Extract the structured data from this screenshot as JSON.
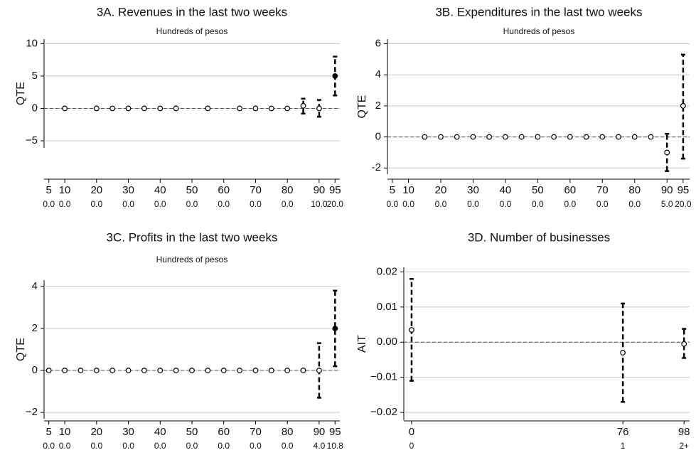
{
  "chart_data": [
    {
      "type": "errorbar",
      "title": "3A. Revenues in the last two weeks",
      "subtitle": "Hundreds of pesos",
      "y_label": "QTE",
      "x": [
        5,
        10,
        15,
        20,
        25,
        30,
        35,
        40,
        45,
        50,
        55,
        60,
        65,
        70,
        75,
        80,
        85,
        90,
        95
      ],
      "values": [
        null,
        0,
        null,
        0,
        0,
        0,
        0,
        0,
        0,
        null,
        0,
        null,
        0,
        0,
        0,
        0,
        0.4,
        0,
        5
      ],
      "lower": [
        null,
        null,
        null,
        null,
        null,
        null,
        null,
        null,
        null,
        null,
        null,
        null,
        null,
        null,
        null,
        null,
        -0.8,
        -1.3,
        2
      ],
      "upper": [
        null,
        null,
        null,
        null,
        null,
        null,
        null,
        null,
        null,
        null,
        null,
        null,
        null,
        null,
        null,
        null,
        1.5,
        1.3,
        8
      ],
      "filled": [
        false,
        false,
        false,
        false,
        false,
        false,
        false,
        false,
        false,
        false,
        false,
        false,
        false,
        false,
        false,
        false,
        false,
        false,
        true
      ],
      "xlim": [
        3.5,
        96.5
      ],
      "xticks": [
        5,
        10,
        20,
        30,
        40,
        50,
        60,
        70,
        80,
        90,
        95
      ],
      "xtick_sublabels": [
        "0.0",
        "0.0",
        "0.0",
        "0.0",
        "0.0",
        "0.0",
        "0.0",
        "0.0",
        "0.0",
        "10.0",
        "20.0"
      ],
      "ylim": [
        -6.1,
        10.7
      ],
      "yticks": [
        {
          "value": -5,
          "label": "−5"
        },
        0,
        5,
        10
      ],
      "grid": true,
      "color": "#000000"
    },
    {
      "type": "errorbar",
      "title": "3B. Expenditures in the last two weeks",
      "subtitle": "Hundreds of pesos",
      "y_label": "QTE",
      "x": [
        5,
        10,
        15,
        20,
        25,
        30,
        35,
        40,
        45,
        50,
        55,
        60,
        65,
        70,
        75,
        80,
        85,
        90,
        95
      ],
      "values": [
        null,
        null,
        0,
        0,
        0,
        0,
        0,
        0,
        0,
        0,
        0,
        0,
        0,
        0,
        0,
        0,
        0,
        -1,
        2
      ],
      "lower": [
        null,
        null,
        null,
        null,
        null,
        null,
        null,
        null,
        null,
        null,
        null,
        null,
        null,
        null,
        null,
        null,
        null,
        -2.2,
        -1.4
      ],
      "upper": [
        null,
        null,
        null,
        null,
        null,
        null,
        null,
        null,
        null,
        null,
        null,
        null,
        null,
        null,
        null,
        null,
        null,
        0.2,
        5.3
      ],
      "filled": [
        false,
        false,
        false,
        false,
        false,
        false,
        false,
        false,
        false,
        false,
        false,
        false,
        false,
        false,
        false,
        false,
        false,
        false,
        false
      ],
      "xlim": [
        3.5,
        97
      ],
      "xticks": [
        5,
        10,
        20,
        30,
        40,
        50,
        60,
        70,
        80,
        90,
        95
      ],
      "xtick_sublabels": [
        "0.0",
        "0.0",
        "0.0",
        "0.0",
        "0.0",
        "0.0",
        "0.0",
        "0.0",
        "0.0",
        "5.0",
        "20.0"
      ],
      "ylim": [
        -2.4,
        6.3
      ],
      "yticks": [
        -2,
        0,
        2,
        4,
        6
      ],
      "grid": true,
      "color": "#000000"
    },
    {
      "type": "errorbar",
      "title": "3C. Profits in the last two weeks",
      "subtitle": "Hundreds of pesos",
      "y_label": "QTE",
      "x": [
        5,
        10,
        15,
        20,
        25,
        30,
        35,
        40,
        45,
        50,
        55,
        60,
        65,
        70,
        75,
        80,
        85,
        90,
        95
      ],
      "values": [
        0,
        0,
        0,
        0,
        0,
        0,
        0,
        0,
        0,
        0,
        0,
        0,
        0,
        0,
        0,
        0,
        0,
        0,
        2
      ],
      "lower": [
        null,
        null,
        null,
        null,
        null,
        null,
        null,
        null,
        null,
        null,
        null,
        null,
        null,
        null,
        null,
        null,
        null,
        -1.3,
        0.2
      ],
      "upper": [
        null,
        null,
        null,
        null,
        null,
        null,
        null,
        null,
        null,
        null,
        null,
        null,
        null,
        null,
        null,
        null,
        null,
        1.3,
        3.8
      ],
      "filled": [
        false,
        false,
        false,
        false,
        false,
        false,
        false,
        false,
        false,
        false,
        false,
        false,
        false,
        false,
        false,
        false,
        false,
        false,
        true
      ],
      "xlim": [
        3.5,
        96.5
      ],
      "xticks": [
        5,
        10,
        20,
        30,
        40,
        50,
        60,
        70,
        80,
        90,
        95
      ],
      "xtick_sublabels": [
        "0.0",
        "0.0",
        "0.0",
        "0.0",
        "0.0",
        "0.0",
        "0.0",
        "0.0",
        "0.0",
        "4.0",
        "10.8"
      ],
      "ylim": [
        -2.3,
        4.3
      ],
      "yticks": [
        {
          "value": -2,
          "label": "−2"
        },
        0,
        2,
        4
      ],
      "grid": true,
      "color": "#000000"
    },
    {
      "type": "errorbar",
      "title": "3D. Number of businesses",
      "y_label": "AIT",
      "x": [
        0,
        76,
        98
      ],
      "values": [
        0.0035,
        -0.003,
        -0.0005
      ],
      "lower": [
        -0.011,
        -0.017,
        -0.0045
      ],
      "upper": [
        0.018,
        0.011,
        0.0038
      ],
      "filled": [
        false,
        false,
        false
      ],
      "xlim": [
        -2.8,
        100
      ],
      "xticks": [
        0,
        76,
        98
      ],
      "xtick_sublabels": [
        "0",
        "1",
        "2+"
      ],
      "ylim": [
        -0.0222,
        0.0213
      ],
      "yticks": [
        {
          "value": -0.02,
          "label": "−0.02"
        },
        {
          "value": -0.01,
          "label": "−0.01"
        },
        {
          "value": 0,
          "label": "0.00"
        },
        0.01,
        0.02
      ],
      "grid": true,
      "color": "#000000"
    }
  ]
}
